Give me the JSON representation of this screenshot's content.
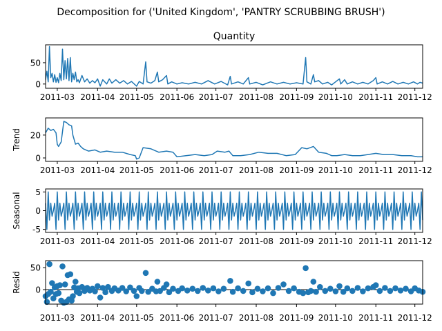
{
  "figure_title": "Decomposition for ('United Kingdom', 'PANTRY SCRUBBING BRUSH')",
  "x_ticks": [
    "2011-03",
    "2011-04",
    "2011-05",
    "2011-06",
    "2011-07",
    "2011-08",
    "2011-09",
    "2011-10",
    "2011-11",
    "2011-12"
  ],
  "colors": {
    "line": "#1f77b4",
    "axis": "#000000",
    "background": "#ffffff"
  },
  "chart_data": [
    {
      "type": "line",
      "panel": "observed",
      "title": "Quantity",
      "ylabel": "",
      "x_range": [
        "2011-02-20",
        "2011-12-07"
      ],
      "ylim": [
        -10,
        92
      ],
      "y_ticks": [
        0,
        50
      ],
      "points": [
        [
          "2011-02-20",
          10
        ],
        [
          "2011-02-21",
          30
        ],
        [
          "2011-02-22",
          5
        ],
        [
          "2011-02-23",
          88
        ],
        [
          "2011-02-24",
          15
        ],
        [
          "2011-02-25",
          25
        ],
        [
          "2011-02-26",
          5
        ],
        [
          "2011-02-27",
          22
        ],
        [
          "2011-02-28",
          4
        ],
        [
          "2011-03-01",
          15
        ],
        [
          "2011-03-02",
          3
        ],
        [
          "2011-03-03",
          25
        ],
        [
          "2011-03-04",
          8
        ],
        [
          "2011-03-05",
          82
        ],
        [
          "2011-03-06",
          10
        ],
        [
          "2011-03-07",
          55
        ],
        [
          "2011-03-08",
          12
        ],
        [
          "2011-03-09",
          60
        ],
        [
          "2011-03-10",
          8
        ],
        [
          "2011-03-11",
          62
        ],
        [
          "2011-03-12",
          5
        ],
        [
          "2011-03-13",
          25
        ],
        [
          "2011-03-14",
          10
        ],
        [
          "2011-03-15",
          28
        ],
        [
          "2011-03-16",
          5
        ],
        [
          "2011-03-17",
          10
        ],
        [
          "2011-03-18",
          3
        ],
        [
          "2011-03-20",
          20
        ],
        [
          "2011-03-22",
          5
        ],
        [
          "2011-03-24",
          12
        ],
        [
          "2011-03-26",
          2
        ],
        [
          "2011-03-28",
          8
        ],
        [
          "2011-03-30",
          3
        ],
        [
          "2011-04-01",
          12
        ],
        [
          "2011-04-03",
          -5
        ],
        [
          "2011-04-05",
          10
        ],
        [
          "2011-04-08",
          0
        ],
        [
          "2011-04-10",
          12
        ],
        [
          "2011-04-12",
          2
        ],
        [
          "2011-04-15",
          10
        ],
        [
          "2011-04-18",
          2
        ],
        [
          "2011-04-21",
          8
        ],
        [
          "2011-04-24",
          0
        ],
        [
          "2011-04-27",
          6
        ],
        [
          "2011-05-01",
          -5
        ],
        [
          "2011-05-03",
          6
        ],
        [
          "2011-05-06",
          0
        ],
        [
          "2011-05-08",
          52
        ],
        [
          "2011-05-09",
          5
        ],
        [
          "2011-05-12",
          2
        ],
        [
          "2011-05-15",
          8
        ],
        [
          "2011-05-17",
          28
        ],
        [
          "2011-05-18",
          5
        ],
        [
          "2011-05-21",
          10
        ],
        [
          "2011-05-24",
          20
        ],
        [
          "2011-05-25",
          0
        ],
        [
          "2011-05-28",
          5
        ],
        [
          "2011-06-01",
          0
        ],
        [
          "2011-06-05",
          3
        ],
        [
          "2011-06-10",
          0
        ],
        [
          "2011-06-15",
          4
        ],
        [
          "2011-06-20",
          0
        ],
        [
          "2011-06-25",
          8
        ],
        [
          "2011-06-30",
          0
        ],
        [
          "2011-07-05",
          6
        ],
        [
          "2011-07-10",
          -2
        ],
        [
          "2011-07-12",
          18
        ],
        [
          "2011-07-13",
          0
        ],
        [
          "2011-07-18",
          5
        ],
        [
          "2011-07-22",
          0
        ],
        [
          "2011-07-26",
          15
        ],
        [
          "2011-07-27",
          0
        ],
        [
          "2011-08-01",
          4
        ],
        [
          "2011-08-06",
          -2
        ],
        [
          "2011-08-12",
          5
        ],
        [
          "2011-08-17",
          0
        ],
        [
          "2011-08-22",
          4
        ],
        [
          "2011-08-27",
          0
        ],
        [
          "2011-09-01",
          3
        ],
        [
          "2011-09-06",
          0
        ],
        [
          "2011-09-08",
          62
        ],
        [
          "2011-09-09",
          5
        ],
        [
          "2011-09-12",
          0
        ],
        [
          "2011-09-14",
          22
        ],
        [
          "2011-09-15",
          5
        ],
        [
          "2011-09-18",
          8
        ],
        [
          "2011-09-21",
          0
        ],
        [
          "2011-09-25",
          4
        ],
        [
          "2011-09-28",
          -2
        ],
        [
          "2011-10-01",
          5
        ],
        [
          "2011-10-04",
          12
        ],
        [
          "2011-10-05",
          0
        ],
        [
          "2011-10-08",
          10
        ],
        [
          "2011-10-10",
          0
        ],
        [
          "2011-10-14",
          5
        ],
        [
          "2011-10-18",
          0
        ],
        [
          "2011-10-22",
          4
        ],
        [
          "2011-10-26",
          0
        ],
        [
          "2011-10-30",
          8
        ],
        [
          "2011-11-01",
          15
        ],
        [
          "2011-11-02",
          0
        ],
        [
          "2011-11-06",
          5
        ],
        [
          "2011-11-10",
          0
        ],
        [
          "2011-11-14",
          6
        ],
        [
          "2011-11-18",
          0
        ],
        [
          "2011-11-22",
          4
        ],
        [
          "2011-11-26",
          0
        ],
        [
          "2011-11-30",
          5
        ],
        [
          "2011-12-03",
          0
        ],
        [
          "2011-12-05",
          4
        ],
        [
          "2011-12-07",
          2
        ]
      ]
    },
    {
      "type": "line",
      "panel": "trend",
      "title": "",
      "ylabel": "Trend",
      "x_range": [
        "2011-02-20",
        "2011-12-07"
      ],
      "ylim": [
        -3,
        35
      ],
      "y_ticks": [
        0,
        20
      ],
      "points": [
        [
          "2011-02-20",
          22
        ],
        [
          "2011-02-22",
          26
        ],
        [
          "2011-02-24",
          24
        ],
        [
          "2011-02-26",
          25
        ],
        [
          "2011-02-28",
          22
        ],
        [
          "2011-03-01",
          12
        ],
        [
          "2011-03-02",
          10
        ],
        [
          "2011-03-04",
          14
        ],
        [
          "2011-03-06",
          32
        ],
        [
          "2011-03-08",
          31
        ],
        [
          "2011-03-10",
          29
        ],
        [
          "2011-03-12",
          28
        ],
        [
          "2011-03-13",
          20
        ],
        [
          "2011-03-15",
          12
        ],
        [
          "2011-03-17",
          13
        ],
        [
          "2011-03-19",
          10
        ],
        [
          "2011-03-21",
          8
        ],
        [
          "2011-03-25",
          6
        ],
        [
          "2011-03-30",
          7
        ],
        [
          "2011-04-03",
          5
        ],
        [
          "2011-04-08",
          6
        ],
        [
          "2011-04-14",
          5
        ],
        [
          "2011-04-20",
          5
        ],
        [
          "2011-04-26",
          3
        ],
        [
          "2011-04-30",
          2
        ],
        [
          "2011-05-01",
          -1
        ],
        [
          "2011-05-03",
          0
        ],
        [
          "2011-05-06",
          9
        ],
        [
          "2011-05-12",
          8
        ],
        [
          "2011-05-18",
          5
        ],
        [
          "2011-05-24",
          6
        ],
        [
          "2011-05-29",
          5
        ],
        [
          "2011-06-01",
          1
        ],
        [
          "2011-06-08",
          2
        ],
        [
          "2011-06-15",
          3
        ],
        [
          "2011-06-22",
          2
        ],
        [
          "2011-06-28",
          3
        ],
        [
          "2011-07-02",
          6
        ],
        [
          "2011-07-08",
          5
        ],
        [
          "2011-07-11",
          6
        ],
        [
          "2011-07-14",
          2
        ],
        [
          "2011-07-20",
          2
        ],
        [
          "2011-07-27",
          3
        ],
        [
          "2011-08-03",
          5
        ],
        [
          "2011-08-10",
          4
        ],
        [
          "2011-08-17",
          4
        ],
        [
          "2011-08-24",
          2
        ],
        [
          "2011-08-31",
          3
        ],
        [
          "2011-09-05",
          9
        ],
        [
          "2011-09-09",
          8
        ],
        [
          "2011-09-14",
          10
        ],
        [
          "2011-09-18",
          5
        ],
        [
          "2011-09-24",
          4
        ],
        [
          "2011-09-28",
          2
        ],
        [
          "2011-10-02",
          2
        ],
        [
          "2011-10-08",
          3
        ],
        [
          "2011-10-14",
          2
        ],
        [
          "2011-10-20",
          2
        ],
        [
          "2011-10-26",
          3
        ],
        [
          "2011-11-01",
          4
        ],
        [
          "2011-11-07",
          3
        ],
        [
          "2011-11-14",
          3
        ],
        [
          "2011-11-21",
          2
        ],
        [
          "2011-11-28",
          2
        ],
        [
          "2011-12-03",
          1
        ],
        [
          "2011-12-07",
          1
        ]
      ]
    },
    {
      "type": "line",
      "panel": "seasonal",
      "title": "",
      "ylabel": "Seasonal",
      "x_range": [
        "2011-02-20",
        "2011-12-07"
      ],
      "ylim": [
        -5.8,
        5.8
      ],
      "y_ticks": [
        -5,
        0,
        5
      ],
      "period_days": 7,
      "period_pattern": [
        2.0,
        -5.0,
        5.0,
        -2.5,
        2.0,
        -1.5,
        0.0
      ]
    },
    {
      "type": "scatter",
      "panel": "resid",
      "title": "",
      "ylabel": "Resid",
      "x_range": [
        "2011-02-20",
        "2011-12-07"
      ],
      "ylim": [
        -33,
        66
      ],
      "y_ticks": [
        0,
        50
      ],
      "zero_line": true,
      "points": [
        [
          "2011-02-20",
          -15
        ],
        [
          "2011-02-21",
          -28
        ],
        [
          "2011-02-22",
          -10
        ],
        [
          "2011-02-23",
          58
        ],
        [
          "2011-02-24",
          -5
        ],
        [
          "2011-02-25",
          15
        ],
        [
          "2011-02-26",
          -20
        ],
        [
          "2011-02-27",
          5
        ],
        [
          "2011-02-28",
          -10
        ],
        [
          "2011-03-01",
          8
        ],
        [
          "2011-03-02",
          -8
        ],
        [
          "2011-03-03",
          10
        ],
        [
          "2011-03-04",
          -25
        ],
        [
          "2011-03-05",
          53
        ],
        [
          "2011-03-06",
          -30
        ],
        [
          "2011-03-07",
          12
        ],
        [
          "2011-03-08",
          -28
        ],
        [
          "2011-03-09",
          33
        ],
        [
          "2011-03-10",
          -22
        ],
        [
          "2011-03-11",
          35
        ],
        [
          "2011-03-12",
          -25
        ],
        [
          "2011-03-13",
          -15
        ],
        [
          "2011-03-14",
          5
        ],
        [
          "2011-03-15",
          18
        ],
        [
          "2011-03-16",
          -5
        ],
        [
          "2011-03-17",
          3
        ],
        [
          "2011-03-18",
          -8
        ],
        [
          "2011-03-20",
          6
        ],
        [
          "2011-03-22",
          -3
        ],
        [
          "2011-03-24",
          4
        ],
        [
          "2011-03-26",
          -2
        ],
        [
          "2011-03-28",
          2
        ],
        [
          "2011-03-30",
          -4
        ],
        [
          "2011-04-01",
          8
        ],
        [
          "2011-04-03",
          -18
        ],
        [
          "2011-04-05",
          4
        ],
        [
          "2011-04-07",
          -6
        ],
        [
          "2011-04-09",
          6
        ],
        [
          "2011-04-12",
          -3
        ],
        [
          "2011-04-14",
          3
        ],
        [
          "2011-04-17",
          -2
        ],
        [
          "2011-04-20",
          4
        ],
        [
          "2011-04-23",
          -4
        ],
        [
          "2011-04-26",
          5
        ],
        [
          "2011-04-29",
          -3
        ],
        [
          "2011-05-01",
          -15
        ],
        [
          "2011-05-03",
          4
        ],
        [
          "2011-05-05",
          -3
        ],
        [
          "2011-05-08",
          38
        ],
        [
          "2011-05-10",
          -5
        ],
        [
          "2011-05-13",
          2
        ],
        [
          "2011-05-16",
          -4
        ],
        [
          "2011-05-17",
          18
        ],
        [
          "2011-05-19",
          -3
        ],
        [
          "2011-05-22",
          4
        ],
        [
          "2011-05-24",
          12
        ],
        [
          "2011-05-26",
          -6
        ],
        [
          "2011-05-29",
          2
        ],
        [
          "2011-06-02",
          -3
        ],
        [
          "2011-06-05",
          3
        ],
        [
          "2011-06-09",
          -2
        ],
        [
          "2011-06-13",
          2
        ],
        [
          "2011-06-17",
          -3
        ],
        [
          "2011-06-21",
          4
        ],
        [
          "2011-06-25",
          -2
        ],
        [
          "2011-06-29",
          3
        ],
        [
          "2011-07-03",
          -4
        ],
        [
          "2011-07-07",
          2
        ],
        [
          "2011-07-12",
          20
        ],
        [
          "2011-07-14",
          -5
        ],
        [
          "2011-07-18",
          3
        ],
        [
          "2011-07-22",
          -3
        ],
        [
          "2011-07-26",
          14
        ],
        [
          "2011-07-29",
          -6
        ],
        [
          "2011-08-02",
          2
        ],
        [
          "2011-08-06",
          -4
        ],
        [
          "2011-08-10",
          3
        ],
        [
          "2011-08-14",
          -8
        ],
        [
          "2011-08-18",
          4
        ],
        [
          "2011-08-22",
          12
        ],
        [
          "2011-08-26",
          -3
        ],
        [
          "2011-08-30",
          3
        ],
        [
          "2011-09-03",
          -5
        ],
        [
          "2011-09-06",
          -8
        ],
        [
          "2011-09-08",
          49
        ],
        [
          "2011-09-10",
          -6
        ],
        [
          "2011-09-12",
          -3
        ],
        [
          "2011-09-14",
          18
        ],
        [
          "2011-09-16",
          -5
        ],
        [
          "2011-09-19",
          6
        ],
        [
          "2011-09-23",
          -3
        ],
        [
          "2011-09-27",
          2
        ],
        [
          "2011-10-01",
          -4
        ],
        [
          "2011-10-04",
          8
        ],
        [
          "2011-10-07",
          -5
        ],
        [
          "2011-10-10",
          3
        ],
        [
          "2011-10-14",
          -3
        ],
        [
          "2011-10-18",
          4
        ],
        [
          "2011-10-22",
          -4
        ],
        [
          "2011-10-26",
          3
        ],
        [
          "2011-10-30",
          6
        ],
        [
          "2011-11-01",
          10
        ],
        [
          "2011-11-04",
          -3
        ],
        [
          "2011-11-08",
          4
        ],
        [
          "2011-11-12",
          -3
        ],
        [
          "2011-11-16",
          3
        ],
        [
          "2011-11-20",
          -2
        ],
        [
          "2011-11-24",
          2
        ],
        [
          "2011-11-28",
          -4
        ],
        [
          "2011-12-01",
          3
        ],
        [
          "2011-12-04",
          -2
        ],
        [
          "2011-12-07",
          -5
        ]
      ]
    }
  ]
}
